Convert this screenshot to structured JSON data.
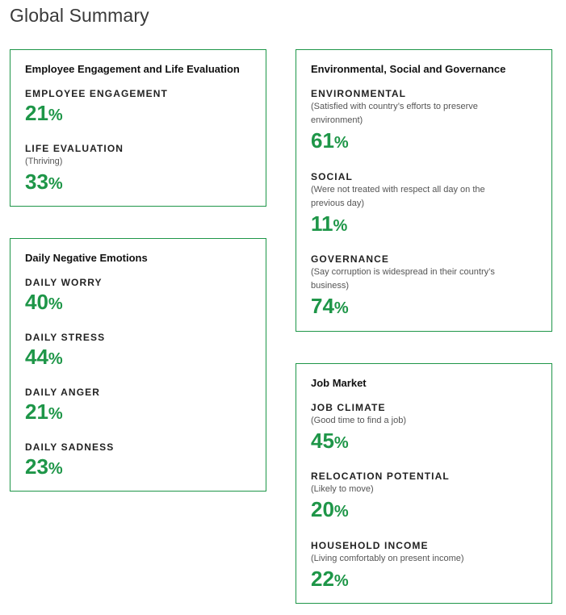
{
  "page": {
    "title": "Global Summary",
    "accent_color": "#1e9648"
  },
  "cards": {
    "engagement": {
      "title": "Employee Engagement and Life Evaluation",
      "metrics": [
        {
          "label": "EMPLOYEE ENGAGEMENT",
          "sub": "",
          "value": "21",
          "unit": "%"
        },
        {
          "label": "LIFE EVALUATION",
          "sub": "(Thriving)",
          "value": "33",
          "unit": "%"
        }
      ]
    },
    "emotions": {
      "title": "Daily Negative Emotions",
      "metrics": [
        {
          "label": "DAILY WORRY",
          "sub": "",
          "value": "40",
          "unit": "%"
        },
        {
          "label": "DAILY STRESS",
          "sub": "",
          "value": "44",
          "unit": "%"
        },
        {
          "label": "DAILY ANGER",
          "sub": "",
          "value": "21",
          "unit": "%"
        },
        {
          "label": "DAILY SADNESS",
          "sub": "",
          "value": "23",
          "unit": "%"
        }
      ]
    },
    "esg": {
      "title": "Environmental, Social and Governance",
      "metrics": [
        {
          "label": "ENVIRONMENTAL",
          "sub": "(Satisfied with country’s efforts to preserve environment)",
          "value": "61",
          "unit": "%"
        },
        {
          "label": "SOCIAL",
          "sub": "(Were not treated with respect all day on the previous day)",
          "value": "11",
          "unit": "%"
        },
        {
          "label": "GOVERNANCE",
          "sub": "(Say corruption is widespread in their country’s business)",
          "value": "74",
          "unit": "%"
        }
      ]
    },
    "jobs": {
      "title": "Job Market",
      "metrics": [
        {
          "label": "JOB CLIMATE",
          "sub": "(Good time to find a job)",
          "value": "45",
          "unit": "%"
        },
        {
          "label": "RELOCATION POTENTIAL",
          "sub": "(Likely to move)",
          "value": "20",
          "unit": "%"
        },
        {
          "label": "HOUSEHOLD INCOME",
          "sub": "(Living comfortably on present income)",
          "value": "22",
          "unit": "%"
        }
      ]
    }
  }
}
